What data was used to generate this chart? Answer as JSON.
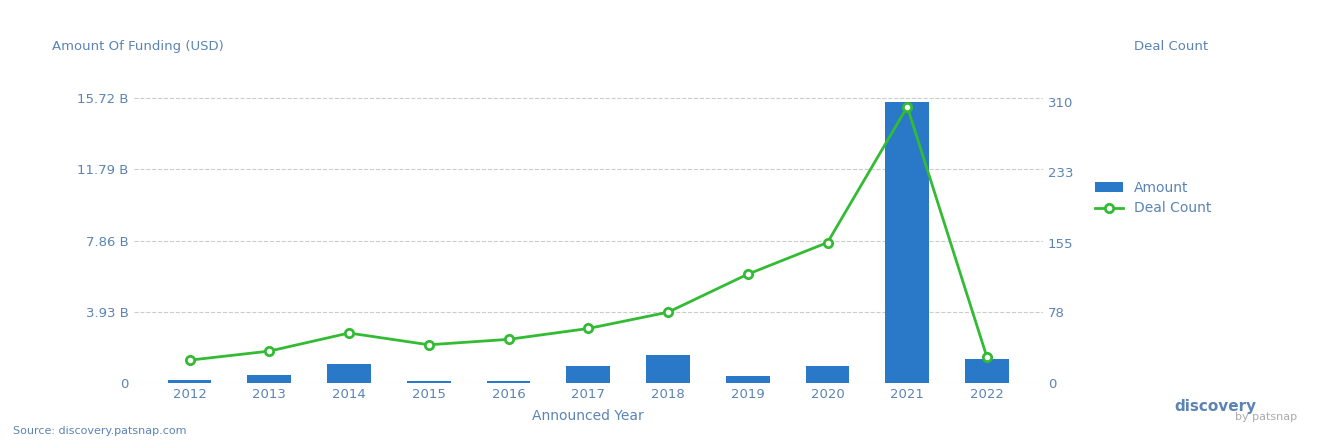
{
  "years": [
    2012,
    2013,
    2014,
    2015,
    2016,
    2017,
    2018,
    2019,
    2020,
    2021,
    2022
  ],
  "funding_billions": [
    0.15,
    0.42,
    1.05,
    0.12,
    0.12,
    0.92,
    1.55,
    0.35,
    0.92,
    15.5,
    1.3
  ],
  "deal_count": [
    25,
    35,
    55,
    42,
    48,
    60,
    78,
    120,
    155,
    305,
    28
  ],
  "bar_color": "#2979C8",
  "line_color": "#33BB33",
  "left_yticks": [
    0,
    3.93,
    7.86,
    11.79,
    15.72
  ],
  "left_yticklabels": [
    "0",
    "3.93 B",
    "7.86 B",
    "11.79 B",
    "15.72 B"
  ],
  "right_yticks": [
    0,
    78,
    155,
    233,
    310
  ],
  "right_yticklabels": [
    "0",
    "78",
    "155",
    "233",
    "310"
  ],
  "left_ylabel": "Amount Of Funding (USD)",
  "right_ylabel": "Deal Count",
  "xlabel": "Announced Year",
  "source_text": "Source: discovery.patsnap.com",
  "background_color": "#ffffff",
  "grid_color": "#cccccc",
  "axis_label_color": "#5b84b5",
  "tick_color": "#5b84b5",
  "left_ylim": [
    0,
    17.5
  ],
  "right_ylim": [
    0,
    350
  ],
  "bar_width": 0.55,
  "legend_items": [
    "Amount",
    "Deal Count"
  ]
}
